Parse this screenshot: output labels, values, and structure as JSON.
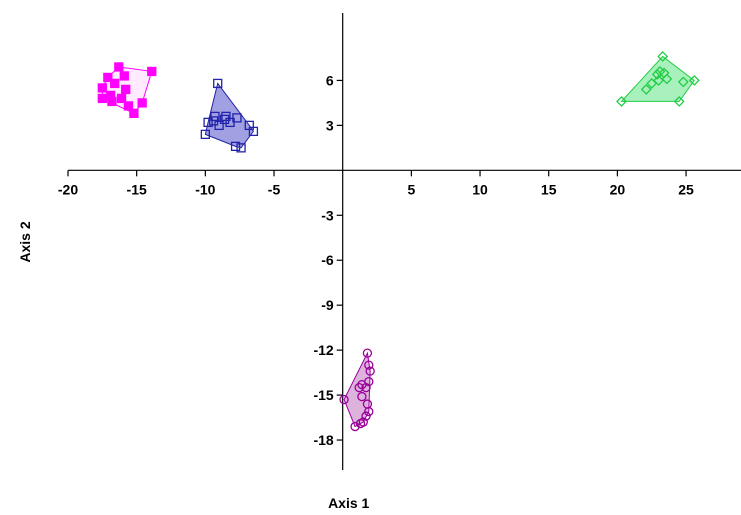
{
  "chart_data": {
    "type": "scatter",
    "xlabel": "Axis 1",
    "ylabel": "Axis 2",
    "xlim": [
      -20,
      29
    ],
    "ylim": [
      -20,
      10.5
    ],
    "xticks": [
      -20,
      -15,
      -10,
      -5,
      5,
      10,
      15,
      20,
      25
    ],
    "yticks": [
      6,
      3,
      -3,
      -6,
      -9,
      -12,
      -15,
      -18
    ],
    "xtick_labels": [
      "-20",
      "-15",
      "-10",
      "-5",
      "5",
      "10",
      "15",
      "20",
      "25"
    ],
    "ytick_labels": [
      "6",
      "3",
      "-3",
      "-6",
      "-9",
      "-12",
      "-15",
      "-18"
    ],
    "grid": false,
    "legend": "none",
    "series": [
      {
        "marker": "square-filled",
        "color": "#ff00ff",
        "hull_fill": "#ffe6ff",
        "points": [
          [
            -17.5,
            4.8
          ],
          [
            -17.5,
            5.5
          ],
          [
            -17.1,
            6.2
          ],
          [
            -16.9,
            5.0
          ],
          [
            -16.6,
            5.8
          ],
          [
            -16.3,
            6.9
          ],
          [
            -16.1,
            4.8
          ],
          [
            -15.9,
            6.3
          ],
          [
            -15.6,
            4.3
          ],
          [
            -15.2,
            3.8
          ],
          [
            -14.6,
            4.5
          ],
          [
            -13.9,
            6.6
          ],
          [
            -16.8,
            4.6
          ],
          [
            -15.8,
            5.4
          ]
        ]
      },
      {
        "marker": "square-open",
        "color": "#2222aa",
        "hull_fill": "#8f8fdd",
        "points": [
          [
            -9.1,
            5.8
          ],
          [
            -8.6,
            3.4
          ],
          [
            -9.3,
            3.6
          ],
          [
            -9.8,
            3.2
          ],
          [
            -9.4,
            3.3
          ],
          [
            -8.5,
            3.6
          ],
          [
            -8.2,
            3.2
          ],
          [
            -7.7,
            3.5
          ],
          [
            -10.0,
            2.4
          ],
          [
            -7.8,
            1.6
          ],
          [
            -7.4,
            1.5
          ],
          [
            -6.8,
            3.0
          ],
          [
            -6.5,
            2.6
          ],
          [
            -9.0,
            3.0
          ]
        ]
      },
      {
        "marker": "diamond-open",
        "color": "#22cc44",
        "hull_fill": "#99eeb0",
        "points": [
          [
            20.3,
            4.6
          ],
          [
            22.1,
            5.4
          ],
          [
            22.5,
            5.8
          ],
          [
            22.9,
            6.4
          ],
          [
            23.1,
            6.6
          ],
          [
            23.4,
            6.5
          ],
          [
            23.6,
            6.1
          ],
          [
            23.3,
            7.6
          ],
          [
            24.5,
            4.6
          ],
          [
            25.6,
            6.0
          ],
          [
            24.8,
            5.9
          ],
          [
            23.0,
            6.0
          ]
        ]
      },
      {
        "marker": "circle-open",
        "color": "#990099",
        "hull_fill": "#d7a4d7",
        "points": [
          [
            0.1,
            -15.3
          ],
          [
            1.4,
            -14.3
          ],
          [
            1.7,
            -14.5
          ],
          [
            1.2,
            -14.5
          ],
          [
            1.9,
            -14.1
          ],
          [
            1.8,
            -12.2
          ],
          [
            1.9,
            -13.0
          ],
          [
            2.0,
            -13.4
          ],
          [
            1.8,
            -15.6
          ],
          [
            1.9,
            -16.1
          ],
          [
            1.7,
            -16.4
          ],
          [
            1.5,
            -16.8
          ],
          [
            0.9,
            -17.1
          ],
          [
            1.3,
            -16.9
          ],
          [
            1.4,
            -15.1
          ]
        ]
      }
    ]
  }
}
